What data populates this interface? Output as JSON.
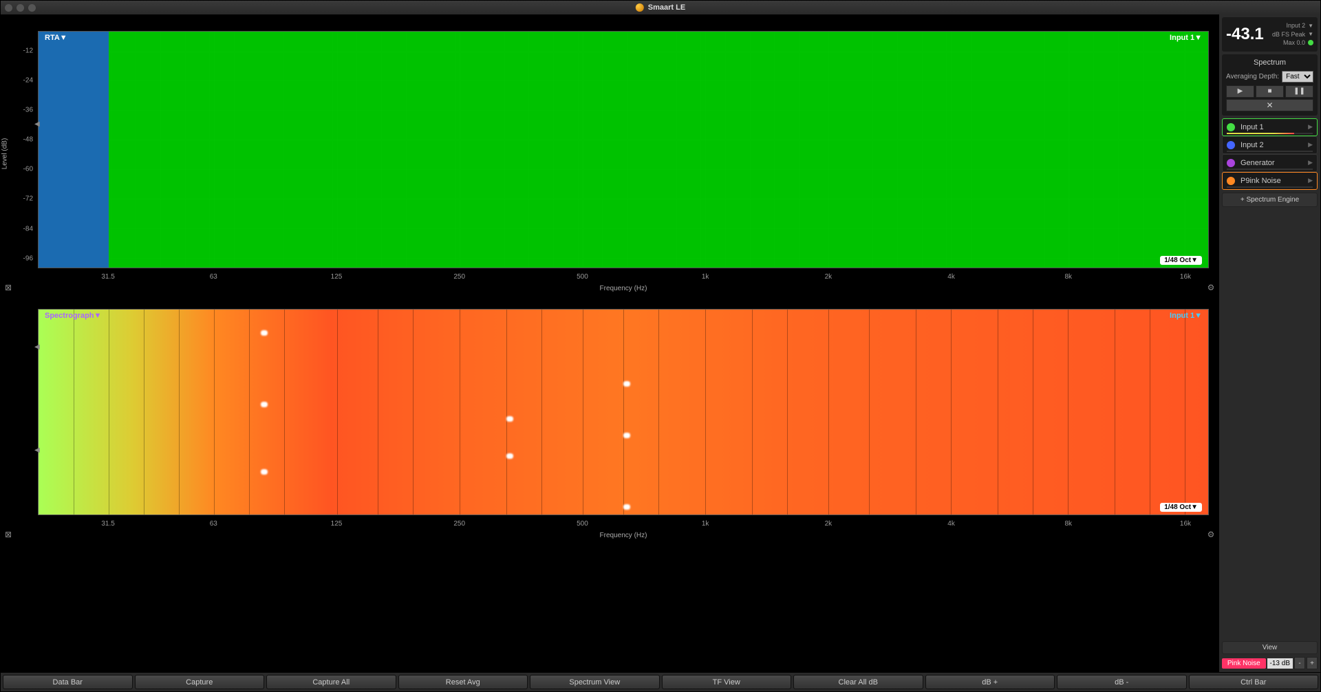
{
  "app": {
    "title": "Smaart LE"
  },
  "level_display": {
    "value": "-43.1",
    "input_label": "Input 2",
    "mode": "dB FS Peak",
    "max": "Max 0.0"
  },
  "spectrum_panel": {
    "title": "Spectrum",
    "avg_label": "Averaging Depth:",
    "avg_value": "Fast",
    "add_engine": "+ Spectrum Engine"
  },
  "inputs": [
    {
      "label": "Input 1",
      "color": "#44dd44",
      "active": true,
      "meter_color": "linear-gradient(90deg,#dddd44 70%,#ff4444 100%)",
      "meter_pct": 78
    },
    {
      "label": "Input 2",
      "color": "#4466ff",
      "active": false,
      "meter_color": "#4466ff",
      "meter_pct": 0
    },
    {
      "label": "Generator",
      "color": "#aa44dd",
      "active": false,
      "meter_color": "#aa44dd",
      "meter_pct": 0
    },
    {
      "label": "P9ink Noise",
      "color": "#ff8822",
      "active": true,
      "active_class": "active-orange",
      "meter_color": "#ff8822",
      "meter_pct": 0
    }
  ],
  "view_button": "View",
  "pink_noise": {
    "label": "Pink Noise",
    "db": "-13 dB"
  },
  "rta_chart": {
    "tl_label": "RTA▼",
    "tr_label": "Input 1▼",
    "br_label": "1/48 Oct▼",
    "y_label": "Level (dB)",
    "x_label": "Frequency (Hz)",
    "y_ticks": [
      -12,
      -24,
      -36,
      -48,
      -60,
      -72,
      -84,
      -96
    ],
    "y_range": [
      -100,
      -4
    ],
    "x_ticks": [
      "31.5",
      "63",
      "125",
      "250",
      "500",
      "1k",
      "2k",
      "4k",
      "8k",
      "16k"
    ],
    "x_positions": [
      6,
      15,
      25.5,
      36,
      46.5,
      57,
      67.5,
      78,
      88,
      98
    ],
    "fill_color": "#00cc00",
    "fill_profile": [
      [
        0,
        75
      ],
      [
        3,
        72
      ],
      [
        6,
        66
      ],
      [
        9,
        60
      ],
      [
        12,
        52
      ],
      [
        15,
        48
      ],
      [
        18,
        44
      ],
      [
        21,
        46
      ],
      [
        24,
        42
      ],
      [
        27,
        47
      ],
      [
        30,
        44
      ],
      [
        33,
        50
      ],
      [
        36,
        46
      ],
      [
        39,
        48
      ],
      [
        42,
        45
      ],
      [
        45,
        50
      ],
      [
        48,
        47
      ],
      [
        51,
        49
      ],
      [
        54,
        46
      ],
      [
        57,
        48
      ],
      [
        60,
        50
      ],
      [
        63,
        48
      ],
      [
        66,
        50
      ],
      [
        69,
        49
      ],
      [
        72,
        50
      ],
      [
        75,
        48
      ],
      [
        78,
        50
      ],
      [
        81,
        49
      ],
      [
        84,
        48
      ],
      [
        87,
        50
      ],
      [
        90,
        47
      ],
      [
        93,
        49
      ],
      [
        96,
        48
      ],
      [
        99,
        50
      ],
      [
        100,
        52
      ]
    ],
    "secondary_color": "#2255dd",
    "secondary_profile": [
      [
        0,
        72
      ],
      [
        2,
        70
      ],
      [
        4,
        73
      ],
      [
        6,
        76
      ]
    ]
  },
  "spectro_chart": {
    "tl_label": "Spectrograph▼",
    "tr_label": "Input 1▼",
    "br_label": "1/48 Oct▼",
    "x_label": "Frequency (Hz)",
    "x_ticks": [
      "31.5",
      "63",
      "125",
      "250",
      "500",
      "1k",
      "2k",
      "4k",
      "8k",
      "16k"
    ],
    "x_positions": [
      6,
      15,
      25.5,
      36,
      46.5,
      57,
      67.5,
      78,
      88,
      98
    ],
    "v_grid_pct": [
      3,
      6,
      9,
      12,
      15,
      18,
      21,
      25.5,
      29,
      32,
      36,
      40,
      43,
      46.5,
      50,
      53,
      57,
      61,
      64,
      67.5,
      71,
      75,
      78,
      82,
      85,
      88,
      92,
      95,
      98
    ]
  },
  "bottom_buttons": [
    "Data Bar",
    "Capture",
    "Capture All",
    "Reset Avg",
    "Spectrum View",
    "TF View",
    "Clear All dB",
    "dB +",
    "dB -",
    "Ctrl Bar"
  ],
  "colors": {
    "bg": "#000000",
    "panel": "#2a2a2a",
    "grid": "#333333"
  }
}
